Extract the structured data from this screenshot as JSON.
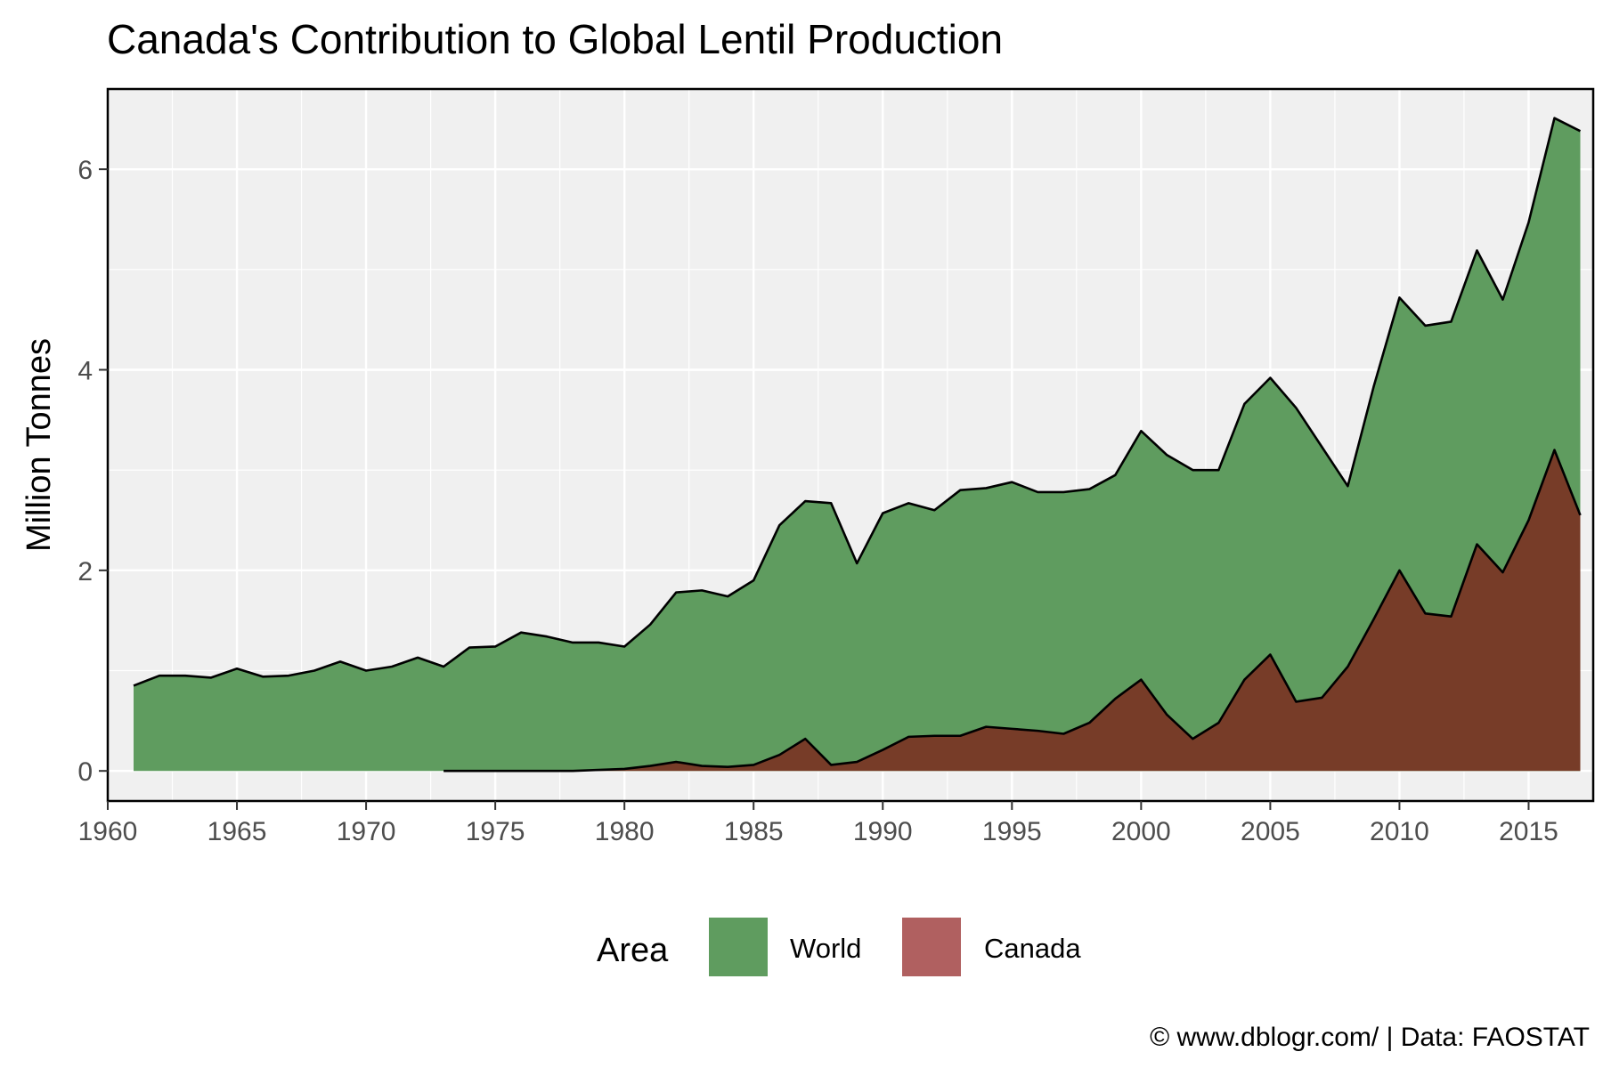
{
  "chart_data": {
    "type": "area",
    "title": "Canada's Contribution to Global Lentil Production",
    "xlabel": "",
    "ylabel": "Million Tonnes",
    "xlim": [
      1960,
      2017.5
    ],
    "ylim": [
      -0.3,
      6.8
    ],
    "x_ticks": [
      "1960",
      "1965",
      "1970",
      "1975",
      "1980",
      "1985",
      "1990",
      "1995",
      "2000",
      "2005",
      "2010",
      "2015"
    ],
    "y_ticks": [
      "0",
      "2",
      "4",
      "6"
    ],
    "grid": true,
    "legend": {
      "title": "Area",
      "position": "bottom",
      "entries": [
        "World",
        "Canada"
      ]
    },
    "caption": "© www.dblogr.com/  |  Data: FAOSTAT",
    "colors": {
      "World": "#5f9c5f",
      "Canada": "#b06060",
      "Canada_fill": "#773c28"
    },
    "series": [
      {
        "name": "World",
        "x": [
          1961,
          1962,
          1963,
          1964,
          1965,
          1966,
          1967,
          1968,
          1969,
          1970,
          1971,
          1972,
          1973,
          1974,
          1975,
          1976,
          1977,
          1978,
          1979,
          1980,
          1981,
          1982,
          1983,
          1984,
          1985,
          1986,
          1987,
          1988,
          1989,
          1990,
          1991,
          1992,
          1993,
          1994,
          1995,
          1996,
          1997,
          1998,
          1999,
          2000,
          2001,
          2002,
          2003,
          2004,
          2005,
          2006,
          2007,
          2008,
          2009,
          2010,
          2011,
          2012,
          2013,
          2014,
          2015,
          2016,
          2017
        ],
        "values": [
          0.85,
          0.95,
          0.95,
          0.93,
          1.02,
          0.94,
          0.95,
          1.0,
          1.09,
          1.0,
          1.04,
          1.13,
          1.04,
          1.23,
          1.24,
          1.38,
          1.34,
          1.28,
          1.28,
          1.24,
          1.46,
          1.78,
          1.8,
          1.74,
          1.9,
          2.45,
          2.69,
          2.67,
          2.07,
          2.57,
          2.67,
          2.6,
          2.8,
          2.82,
          2.88,
          2.78,
          2.78,
          2.81,
          2.95,
          3.39,
          3.15,
          3.0,
          3.0,
          3.66,
          3.92,
          3.62,
          3.23,
          2.84,
          3.83,
          4.72,
          4.44,
          4.48,
          5.19,
          4.7,
          5.47,
          6.51,
          6.38
        ]
      },
      {
        "name": "Canada",
        "x": [
          1973,
          1974,
          1975,
          1976,
          1977,
          1978,
          1979,
          1980,
          1981,
          1982,
          1983,
          1984,
          1985,
          1986,
          1987,
          1988,
          1989,
          1990,
          1991,
          1992,
          1993,
          1994,
          1995,
          1996,
          1997,
          1998,
          1999,
          2000,
          2001,
          2002,
          2003,
          2004,
          2005,
          2006,
          2007,
          2008,
          2009,
          2010,
          2011,
          2012,
          2013,
          2014,
          2015,
          2016,
          2017
        ],
        "values": [
          0.0,
          0.0,
          0.0,
          0.0,
          0.0,
          0.0,
          0.01,
          0.02,
          0.05,
          0.09,
          0.05,
          0.04,
          0.06,
          0.16,
          0.32,
          0.06,
          0.09,
          0.21,
          0.34,
          0.35,
          0.35,
          0.44,
          0.42,
          0.4,
          0.37,
          0.48,
          0.72,
          0.91,
          0.56,
          0.32,
          0.48,
          0.91,
          1.16,
          0.69,
          0.73,
          1.04,
          1.51,
          2.0,
          1.57,
          1.54,
          2.26,
          1.98,
          2.5,
          3.2,
          2.55
        ]
      }
    ]
  }
}
